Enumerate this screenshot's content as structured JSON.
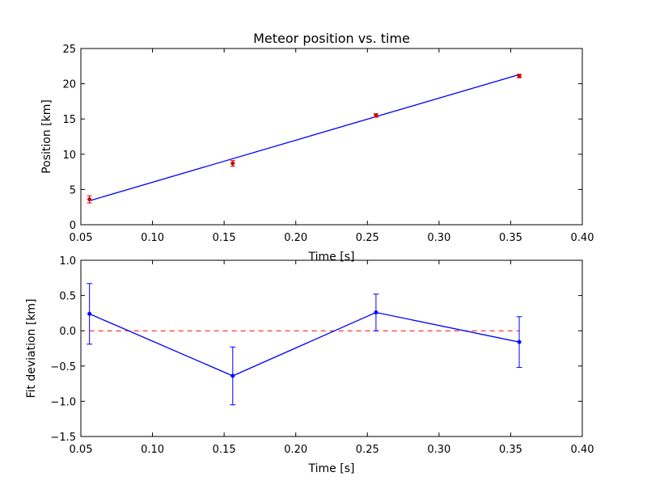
{
  "chart_data": [
    {
      "type": "scatter",
      "title": "Meteor position vs. time",
      "xlabel": "Time [s]",
      "ylabel": "Position [km]",
      "xlim": [
        0.05,
        0.4
      ],
      "ylim": [
        0,
        25
      ],
      "xticks": [
        "0.05",
        "0.10",
        "0.15",
        "0.20",
        "0.25",
        "0.30",
        "0.35",
        "0.40"
      ],
      "yticks": [
        "0",
        "5",
        "10",
        "15",
        "20",
        "25"
      ],
      "grid": false,
      "colors": {
        "data": "#cc0000",
        "fit": "#0000ff"
      },
      "series": [
        {
          "kind": "errorbar-points",
          "x": [
            0.056,
            0.156,
            0.256,
            0.356
          ],
          "y": [
            3.6,
            8.7,
            15.5,
            21.1
          ],
          "yerr": [
            0.5,
            0.4,
            0.25,
            0.25
          ]
        },
        {
          "kind": "line",
          "x": [
            0.056,
            0.356
          ],
          "y": [
            3.4,
            21.3
          ]
        }
      ]
    },
    {
      "type": "line",
      "title": "",
      "xlabel": "Time [s]",
      "ylabel": "Fit deviation [km]",
      "xlim": [
        0.05,
        0.4
      ],
      "ylim": [
        -1.5,
        1.0
      ],
      "xticks": [
        "0.05",
        "0.10",
        "0.15",
        "0.20",
        "0.25",
        "0.30",
        "0.35",
        "0.40"
      ],
      "yticks": [
        "1.0",
        "0.5",
        "0.0",
        "−0.5",
        "−1.0",
        "−1.5"
      ],
      "grid": false,
      "colors": {
        "residual": "#0000ff",
        "zero": "#ff0000"
      },
      "series": [
        {
          "kind": "errorbar-line",
          "x": [
            0.056,
            0.156,
            0.256,
            0.356
          ],
          "y": [
            0.24,
            -0.64,
            0.26,
            -0.16
          ],
          "yerr": [
            0.43,
            0.41,
            0.26,
            0.36
          ]
        },
        {
          "kind": "dashed-line",
          "x": [
            0.056,
            0.356
          ],
          "y": [
            0,
            0
          ]
        }
      ]
    }
  ]
}
